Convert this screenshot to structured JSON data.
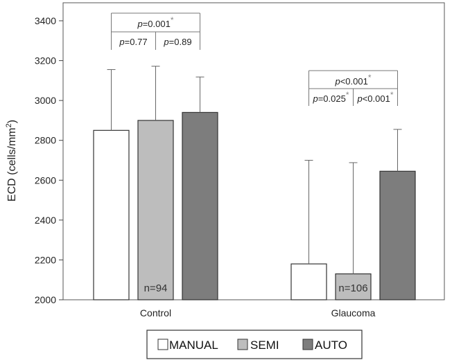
{
  "chart_data": {
    "type": "bar",
    "ylabel": "ECD (cells/mm",
    "ylabel_sup": "2",
    "ylabel_close": ")",
    "xlabel": "",
    "ylim": [
      2000,
      3400
    ],
    "yticks": [
      2000,
      2200,
      2400,
      2600,
      2800,
      3000,
      3200,
      3400
    ],
    "grid": false,
    "legend_position": "bottom",
    "categories": [
      "Control",
      "Glaucoma"
    ],
    "series": [
      {
        "name": "MANUAL",
        "color": "#ffffff",
        "values": [
          2850,
          2180
        ],
        "errors": [
          305,
          520
        ]
      },
      {
        "name": "SEMI",
        "color": "#bdbdbd",
        "values": [
          2900,
          2130
        ],
        "errors": [
          272,
          558
        ]
      },
      {
        "name": "AUTO",
        "color": "#7d7d7d",
        "values": [
          2940,
          2645
        ],
        "errors": [
          178,
          210
        ]
      }
    ],
    "n_labels": [
      {
        "category": 0,
        "series": 1,
        "text": "n=94"
      },
      {
        "category": 1,
        "series": 1,
        "text": "n=106"
      }
    ],
    "annotations": [
      {
        "category": 0,
        "from": 0,
        "to": 2,
        "level": 2,
        "p": "=0.001",
        "star": true
      },
      {
        "category": 0,
        "from": 0,
        "to": 1,
        "level": 1,
        "p": "=0.77",
        "star": false
      },
      {
        "category": 0,
        "from": 1,
        "to": 2,
        "level": 1,
        "p": "=0.89",
        "star": false
      },
      {
        "category": 1,
        "from": 0,
        "to": 2,
        "level": 2,
        "p": "<0.001",
        "star": true
      },
      {
        "category": 1,
        "from": 0,
        "to": 1,
        "level": 1,
        "p": "=0.025",
        "star": true
      },
      {
        "category": 1,
        "from": 1,
        "to": 2,
        "level": 1,
        "p": "<0.001",
        "star": true
      }
    ],
    "p_symbol": "p",
    "star_symbol": "*"
  }
}
